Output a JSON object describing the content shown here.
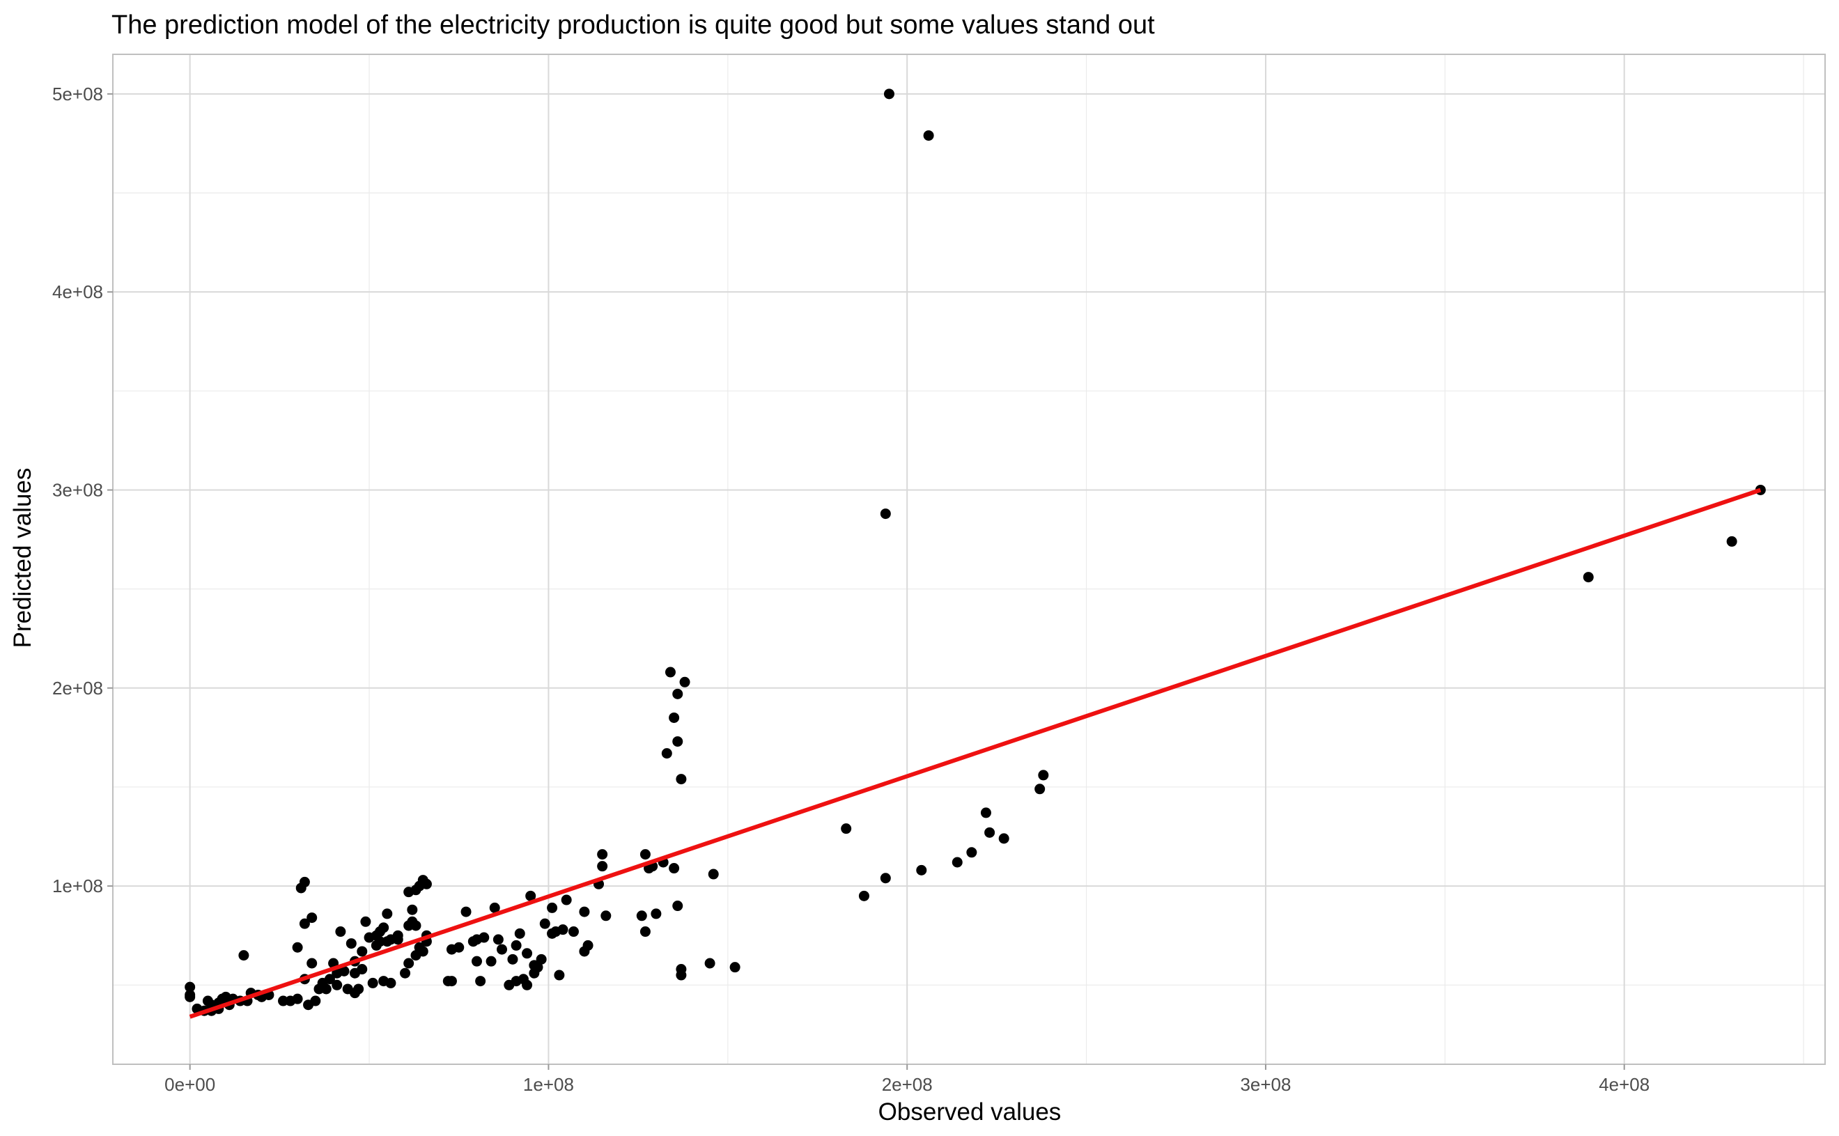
{
  "chart_data": {
    "type": "scatter",
    "title": "The prediction model of the electricity production is quite good but some values stand out",
    "xlabel": "Observed values",
    "ylabel": "Predicted values",
    "xlim": [
      -21500000,
      456000000
    ],
    "ylim": [
      10000000,
      520000000
    ],
    "x_ticks": [
      0,
      100000000,
      200000000,
      300000000,
      400000000
    ],
    "x_tick_labels": [
      "0e+00",
      "1e+08",
      "2e+08",
      "3e+08",
      "4e+08"
    ],
    "y_ticks": [
      100000000,
      200000000,
      300000000,
      400000000,
      500000000
    ],
    "y_tick_labels": [
      "1e+08",
      "2e+08",
      "3e+08",
      "4e+08",
      "5e+08"
    ],
    "grid": true,
    "point_color": "#000000",
    "line_color": "#ee1111",
    "series": [
      {
        "type": "scatter",
        "points": [
          [
            0,
            49000000
          ],
          [
            0,
            45000000
          ],
          [
            0,
            44000000
          ],
          [
            2000000,
            38000000
          ],
          [
            4000000,
            37000000
          ],
          [
            5000000,
            42000000
          ],
          [
            6000000,
            40000000
          ],
          [
            6000000,
            37000000
          ],
          [
            8000000,
            41000000
          ],
          [
            8000000,
            38000000
          ],
          [
            9000000,
            43000000
          ],
          [
            10000000,
            44000000
          ],
          [
            11000000,
            40000000
          ],
          [
            12000000,
            43000000
          ],
          [
            14000000,
            42000000
          ],
          [
            15000000,
            65000000
          ],
          [
            16000000,
            42000000
          ],
          [
            17000000,
            46000000
          ],
          [
            19000000,
            45000000
          ],
          [
            20000000,
            44000000
          ],
          [
            22000000,
            45000000
          ],
          [
            26000000,
            42000000
          ],
          [
            28000000,
            42000000
          ],
          [
            30000000,
            43000000
          ],
          [
            30000000,
            69000000
          ],
          [
            31000000,
            99000000
          ],
          [
            32000000,
            102000000
          ],
          [
            32000000,
            81000000
          ],
          [
            32000000,
            53000000
          ],
          [
            33000000,
            40000000
          ],
          [
            34000000,
            61000000
          ],
          [
            34000000,
            84000000
          ],
          [
            35000000,
            42000000
          ],
          [
            36000000,
            48000000
          ],
          [
            37000000,
            51000000
          ],
          [
            38000000,
            48000000
          ],
          [
            39000000,
            53000000
          ],
          [
            40000000,
            61000000
          ],
          [
            41000000,
            56000000
          ],
          [
            41000000,
            50000000
          ],
          [
            42000000,
            77000000
          ],
          [
            43000000,
            57000000
          ],
          [
            44000000,
            48000000
          ],
          [
            45000000,
            71000000
          ],
          [
            46000000,
            46000000
          ],
          [
            46000000,
            56000000
          ],
          [
            46000000,
            62000000
          ],
          [
            47000000,
            48000000
          ],
          [
            48000000,
            58000000
          ],
          [
            48000000,
            67000000
          ],
          [
            49000000,
            82000000
          ],
          [
            50000000,
            74000000
          ],
          [
            51000000,
            51000000
          ],
          [
            52000000,
            70000000
          ],
          [
            52000000,
            75000000
          ],
          [
            53000000,
            77000000
          ],
          [
            53000000,
            72000000
          ],
          [
            54000000,
            52000000
          ],
          [
            54000000,
            79000000
          ],
          [
            55000000,
            72000000
          ],
          [
            55000000,
            86000000
          ],
          [
            56000000,
            73000000
          ],
          [
            56000000,
            51000000
          ],
          [
            58000000,
            73000000
          ],
          [
            58000000,
            75000000
          ],
          [
            60000000,
            56000000
          ],
          [
            61000000,
            61000000
          ],
          [
            61000000,
            80000000
          ],
          [
            61000000,
            97000000
          ],
          [
            62000000,
            88000000
          ],
          [
            62000000,
            82000000
          ],
          [
            63000000,
            98000000
          ],
          [
            63000000,
            80000000
          ],
          [
            63000000,
            65000000
          ],
          [
            64000000,
            69000000
          ],
          [
            64000000,
            100000000
          ],
          [
            65000000,
            103000000
          ],
          [
            65000000,
            67000000
          ],
          [
            66000000,
            101000000
          ],
          [
            66000000,
            75000000
          ],
          [
            66000000,
            72000000
          ],
          [
            72000000,
            52000000
          ],
          [
            73000000,
            52000000
          ],
          [
            73000000,
            68000000
          ],
          [
            75000000,
            69000000
          ],
          [
            77000000,
            87000000
          ],
          [
            79000000,
            72000000
          ],
          [
            80000000,
            73000000
          ],
          [
            80000000,
            62000000
          ],
          [
            81000000,
            52000000
          ],
          [
            82000000,
            74000000
          ],
          [
            84000000,
            62000000
          ],
          [
            85000000,
            89000000
          ],
          [
            86000000,
            73000000
          ],
          [
            87000000,
            68000000
          ],
          [
            89000000,
            50000000
          ],
          [
            90000000,
            63000000
          ],
          [
            91000000,
            52000000
          ],
          [
            91000000,
            70000000
          ],
          [
            92000000,
            76000000
          ],
          [
            93000000,
            53000000
          ],
          [
            94000000,
            50000000
          ],
          [
            94000000,
            66000000
          ],
          [
            95000000,
            95000000
          ],
          [
            96000000,
            60000000
          ],
          [
            96000000,
            56000000
          ],
          [
            97000000,
            59000000
          ],
          [
            98000000,
            63000000
          ],
          [
            99000000,
            81000000
          ],
          [
            101000000,
            89000000
          ],
          [
            101000000,
            76000000
          ],
          [
            102000000,
            77000000
          ],
          [
            103000000,
            55000000
          ],
          [
            104000000,
            78000000
          ],
          [
            105000000,
            93000000
          ],
          [
            107000000,
            77000000
          ],
          [
            110000000,
            87000000
          ],
          [
            110000000,
            67000000
          ],
          [
            111000000,
            70000000
          ],
          [
            114000000,
            101000000
          ],
          [
            115000000,
            116000000
          ],
          [
            115000000,
            110000000
          ],
          [
            116000000,
            85000000
          ],
          [
            126000000,
            85000000
          ],
          [
            127000000,
            116000000
          ],
          [
            127000000,
            77000000
          ],
          [
            128000000,
            109000000
          ],
          [
            129000000,
            110000000
          ],
          [
            130000000,
            86000000
          ],
          [
            132000000,
            112000000
          ],
          [
            133000000,
            167000000
          ],
          [
            134000000,
            208000000
          ],
          [
            135000000,
            109000000
          ],
          [
            135000000,
            185000000
          ],
          [
            136000000,
            90000000
          ],
          [
            136000000,
            173000000
          ],
          [
            136000000,
            197000000
          ],
          [
            137000000,
            55000000
          ],
          [
            137000000,
            58000000
          ],
          [
            137000000,
            154000000
          ],
          [
            138000000,
            203000000
          ],
          [
            146000000,
            106000000
          ],
          [
            145000000,
            61000000
          ],
          [
            152000000,
            59000000
          ],
          [
            183000000,
            129000000
          ],
          [
            188000000,
            95000000
          ],
          [
            194000000,
            104000000
          ],
          [
            194000000,
            288000000
          ],
          [
            195000000,
            500000000
          ],
          [
            204000000,
            108000000
          ],
          [
            206000000,
            479000000
          ],
          [
            214000000,
            112000000
          ],
          [
            218000000,
            117000000
          ],
          [
            222000000,
            137000000
          ],
          [
            223000000,
            127000000
          ],
          [
            227000000,
            124000000
          ],
          [
            237000000,
            149000000
          ],
          [
            238000000,
            156000000
          ],
          [
            390000000,
            256000000
          ],
          [
            430000000,
            274000000
          ],
          [
            438000000,
            300000000
          ]
        ]
      },
      {
        "type": "line",
        "points": [
          [
            0,
            34000000
          ],
          [
            438000000,
            300000000
          ]
        ]
      }
    ]
  }
}
